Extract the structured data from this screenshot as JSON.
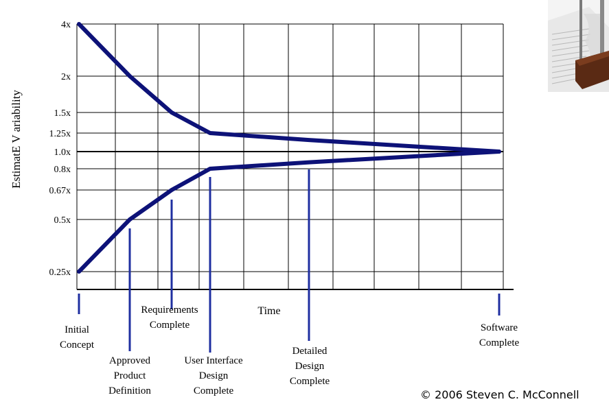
{
  "chart_data": {
    "type": "line",
    "title": "",
    "xlabel": "Time",
    "ylabel": "EstimatE V ariability",
    "y_scale": "log",
    "y_ticks": [
      {
        "value": 4,
        "label": "4x"
      },
      {
        "value": 2,
        "label": "2x"
      },
      {
        "value": 1.5,
        "label": "1.5x"
      },
      {
        "value": 1.25,
        "label": "1.25x"
      },
      {
        "value": 1.0,
        "label": "1.0x"
      },
      {
        "value": 0.8,
        "label": "0.8x"
      },
      {
        "value": 0.67,
        "label": "0.67x"
      },
      {
        "value": 0.5,
        "label": "0.5x"
      },
      {
        "value": 0.25,
        "label": "0.25x"
      }
    ],
    "milestones": [
      {
        "label": "Initial Concept",
        "lines": [
          "Initial",
          "Concept"
        ]
      },
      {
        "label": "Approved Product Definition",
        "lines": [
          "Approved",
          "Product",
          "Definition"
        ]
      },
      {
        "label": "Requirements Complete",
        "lines": [
          "Requirements",
          "Complete"
        ]
      },
      {
        "label": "User Interface Design Complete",
        "lines": [
          "User Interface",
          "Design",
          "Complete"
        ]
      },
      {
        "label": "Detailed Design Complete",
        "lines": [
          "Detailed",
          "Design",
          "Complete"
        ]
      },
      {
        "label": "Software Complete",
        "lines": [
          "Software",
          "Complete"
        ]
      }
    ],
    "series": [
      {
        "values": [
          4,
          2,
          1.5,
          1.25,
          1.15,
          1.0
        ]
      },
      {
        "values": [
          0.25,
          0.5,
          0.67,
          0.8,
          0.87,
          1.0
        ]
      }
    ],
    "grid": true,
    "colors": {
      "curve": "#0d1278",
      "marker": "#1f2fa0",
      "axis": "#000000",
      "grid": "#000000"
    }
  },
  "copyright": "© 2006 Steven C. McConnell",
  "photo_icon": "book-and-hourglass-photo"
}
